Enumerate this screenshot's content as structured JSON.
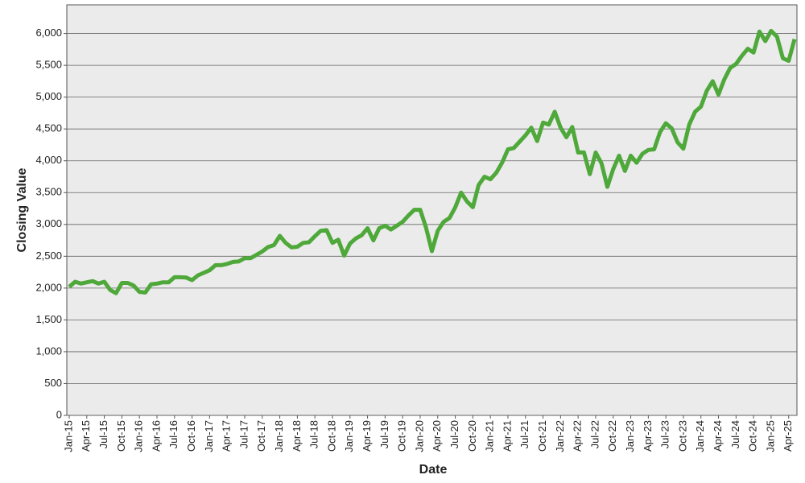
{
  "chart_data": {
    "type": "line",
    "x_label": "Date",
    "y_label": "Closing Value",
    "categories": [
      "Jan-15",
      null,
      null,
      "Apr-15",
      null,
      null,
      "Jul-15",
      null,
      null,
      "Oct-15",
      null,
      null,
      "Jan-16",
      null,
      null,
      "Apr-16",
      null,
      null,
      "Jul-16",
      null,
      null,
      "Oct-16",
      null,
      null,
      "Jan-17",
      null,
      null,
      "Apr-17",
      null,
      null,
      "Jul-17",
      null,
      null,
      "Oct-17",
      null,
      null,
      "Jan-18",
      null,
      null,
      "Apr-18",
      null,
      null,
      "Jul-18",
      null,
      null,
      "Oct-18",
      null,
      null,
      "Jan-19",
      null,
      null,
      "Apr-19",
      null,
      null,
      "Jul-19",
      null,
      null,
      "Oct-19",
      null,
      null,
      "Jan-20",
      null,
      null,
      "Apr-20",
      null,
      null,
      "Jul-20",
      null,
      null,
      "Oct-20",
      null,
      null,
      "Jan-21",
      null,
      null,
      "Apr-21",
      null,
      null,
      "Jul-21",
      null,
      null,
      "Oct-21",
      null,
      null,
      "Jan-22",
      null,
      null,
      "Apr-22",
      null,
      null,
      "Jul-22",
      null,
      null,
      "Oct-22",
      null,
      null,
      "Jan-23",
      null,
      null,
      "Apr-23",
      null,
      null,
      "Jul-23",
      null,
      null,
      "Oct-23",
      null,
      null,
      "Jan-24",
      null,
      null,
      "Apr-24",
      null,
      null,
      "Jul-24",
      null,
      null,
      "Oct-24",
      null,
      null,
      "Jan-25",
      null,
      null,
      "Apr-25",
      null
    ],
    "values": [
      2020,
      2100,
      2070,
      2090,
      2110,
      2070,
      2100,
      1970,
      1920,
      2080,
      2080,
      2040,
      1940,
      1930,
      2060,
      2070,
      2090,
      2090,
      2170,
      2170,
      2165,
      2125,
      2200,
      2240,
      2280,
      2360,
      2360,
      2380,
      2410,
      2420,
      2470,
      2470,
      2520,
      2575,
      2645,
      2675,
      2820,
      2710,
      2640,
      2650,
      2710,
      2720,
      2815,
      2900,
      2910,
      2710,
      2760,
      2510,
      2700,
      2780,
      2830,
      2940,
      2750,
      2940,
      2980,
      2920,
      2980,
      3040,
      3140,
      3230,
      3230,
      2950,
      2580,
      2900,
      3040,
      3100,
      3270,
      3500,
      3360,
      3270,
      3620,
      3750,
      3710,
      3810,
      3970,
      4180,
      4200,
      4300,
      4400,
      4520,
      4310,
      4600,
      4570,
      4770,
      4520,
      4370,
      4530,
      4130,
      4130,
      3790,
      4130,
      3960,
      3590,
      3870,
      4080,
      3840,
      4080,
      3970,
      4110,
      4170,
      4180,
      4450,
      4590,
      4510,
      4290,
      4190,
      4570,
      4770,
      4850,
      5100,
      5250,
      5040,
      5280,
      5460,
      5520,
      5650,
      5760,
      5700,
      6030,
      5880,
      6040,
      5950,
      5610,
      5570,
      5910
    ],
    "color": "#4ea83a",
    "ylim": [
      0,
      6450
    ],
    "yticks": [
      0,
      500,
      {
        "value": 1000,
        "label": "1,000"
      },
      {
        "value": 1500,
        "label": "1,500"
      },
      {
        "value": 2000,
        "label": "2,000"
      },
      {
        "value": 2500,
        "label": "2,500"
      },
      {
        "value": 3000,
        "label": "3,000"
      },
      {
        "value": 3500,
        "label": "3,500"
      },
      {
        "value": 4000,
        "label": "4,000"
      },
      {
        "value": 4500,
        "label": "4,500"
      },
      {
        "value": 5000,
        "label": "5,000"
      },
      {
        "value": 5500,
        "label": "5,500"
      },
      {
        "value": 6000,
        "label": "6,000"
      }
    ],
    "grid": true
  }
}
